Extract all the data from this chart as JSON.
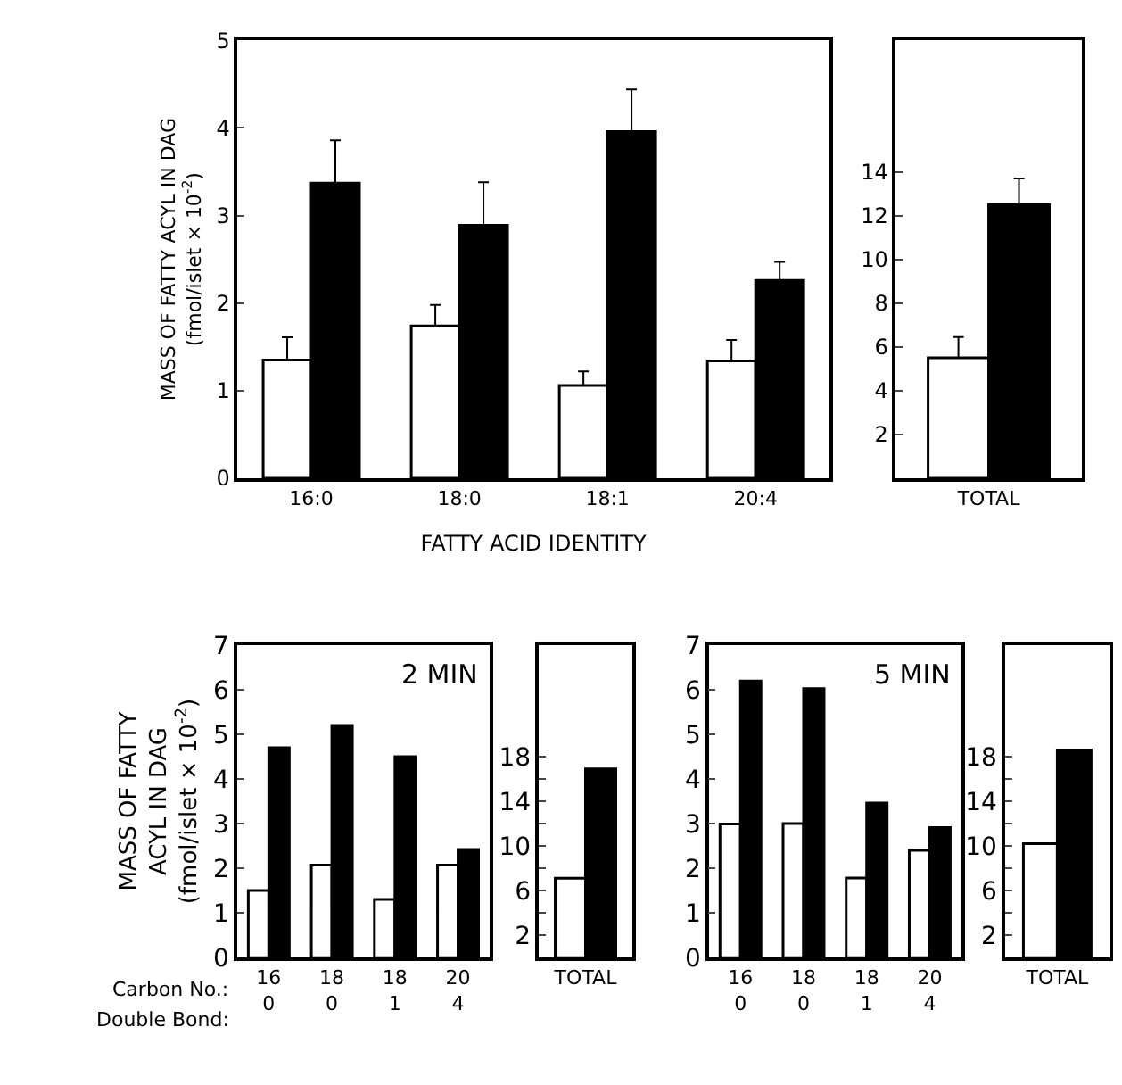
{
  "chart_data": [
    {
      "type": "bar",
      "categories": [
        "16:0",
        "18:0",
        "18:1",
        "20:4"
      ],
      "ylabel": "MASS OF FATTY ACYL IN DAG\n(fmol/islet × 10$^{-2}$)",
      "xlabel": "FATTY ACID IDENTITY",
      "ylim": [
        0,
        5
      ],
      "yticks": [
        0,
        1,
        2,
        3,
        4,
        5
      ],
      "series": [
        {
          "color": "#ffffff",
          "values": [
            1.35,
            1.74,
            1.06,
            1.34
          ],
          "errors": [
            0.26,
            0.24,
            0.16,
            0.24
          ]
        },
        {
          "color": "#000000",
          "values": [
            3.37,
            2.89,
            3.96,
            2.26
          ],
          "errors": [
            0.49,
            0.49,
            0.48,
            0.21
          ]
        }
      ]
    },
    {
      "type": "bar",
      "categories": [
        "TOTAL"
      ],
      "ylim": [
        0,
        20
      ],
      "yticks": [
        2,
        4,
        6,
        8,
        10,
        12,
        14
      ],
      "series": [
        {
          "color": "#ffffff",
          "values": [
            5.5
          ],
          "errors": [
            0.95
          ]
        },
        {
          "color": "#000000",
          "values": [
            12.5
          ],
          "errors": [
            1.2
          ]
        }
      ]
    },
    {
      "type": "bar",
      "title": "2 MIN",
      "categories": [
        "16\n0",
        "18\n0",
        "18\n1",
        "20\n4"
      ],
      "ylabel": "MASS OF FATTY\nACYL IN DAG\n(fmol/islet × 10$^{-2}$)",
      "ylim": [
        0,
        7
      ],
      "yticks": [
        0,
        1,
        2,
        3,
        4,
        5,
        6,
        7
      ],
      "annotations": [
        "Carbon No.:",
        "Double Bond:"
      ],
      "series": [
        {
          "color": "#ffffff",
          "values": [
            1.5,
            2.07,
            1.3,
            2.07
          ]
        },
        {
          "color": "#000000",
          "values": [
            4.7,
            5.2,
            4.5,
            2.42
          ]
        }
      ]
    },
    {
      "type": "bar",
      "categories": [
        "TOTAL"
      ],
      "ylim": [
        0,
        28
      ],
      "yticks": [
        2,
        {
          "value": 4,
          "label": null
        },
        6,
        {
          "value": 8,
          "label": null
        },
        10,
        {
          "value": 12,
          "label": null
        },
        14,
        {
          "value": 16,
          "label": null
        },
        18
      ],
      "series": [
        {
          "color": "#ffffff",
          "values": [
            7.1
          ]
        },
        {
          "color": "#000000",
          "values": [
            16.9
          ]
        }
      ]
    },
    {
      "type": "bar",
      "title": "5 MIN",
      "categories": [
        "16\n0",
        "18\n0",
        "18\n1",
        "20\n4"
      ],
      "ylim": [
        0,
        7
      ],
      "yticks": [
        0,
        1,
        2,
        3,
        4,
        5,
        6,
        7
      ],
      "series": [
        {
          "color": "#ffffff",
          "values": [
            2.99,
            3.0,
            1.78,
            2.4
          ]
        },
        {
          "color": "#000000",
          "values": [
            6.19,
            6.02,
            3.46,
            2.91
          ]
        }
      ]
    },
    {
      "type": "bar",
      "categories": [
        "TOTAL"
      ],
      "ylim": [
        0,
        28
      ],
      "yticks": [
        2,
        {
          "value": 4,
          "label": null
        },
        6,
        {
          "value": 8,
          "label": null
        },
        10,
        {
          "value": 12,
          "label": null
        },
        14,
        {
          "value": 16,
          "label": null
        },
        18
      ],
      "series": [
        {
          "color": "#ffffff",
          "values": [
            10.2
          ]
        },
        {
          "color": "#000000",
          "values": [
            18.6
          ]
        }
      ]
    }
  ]
}
